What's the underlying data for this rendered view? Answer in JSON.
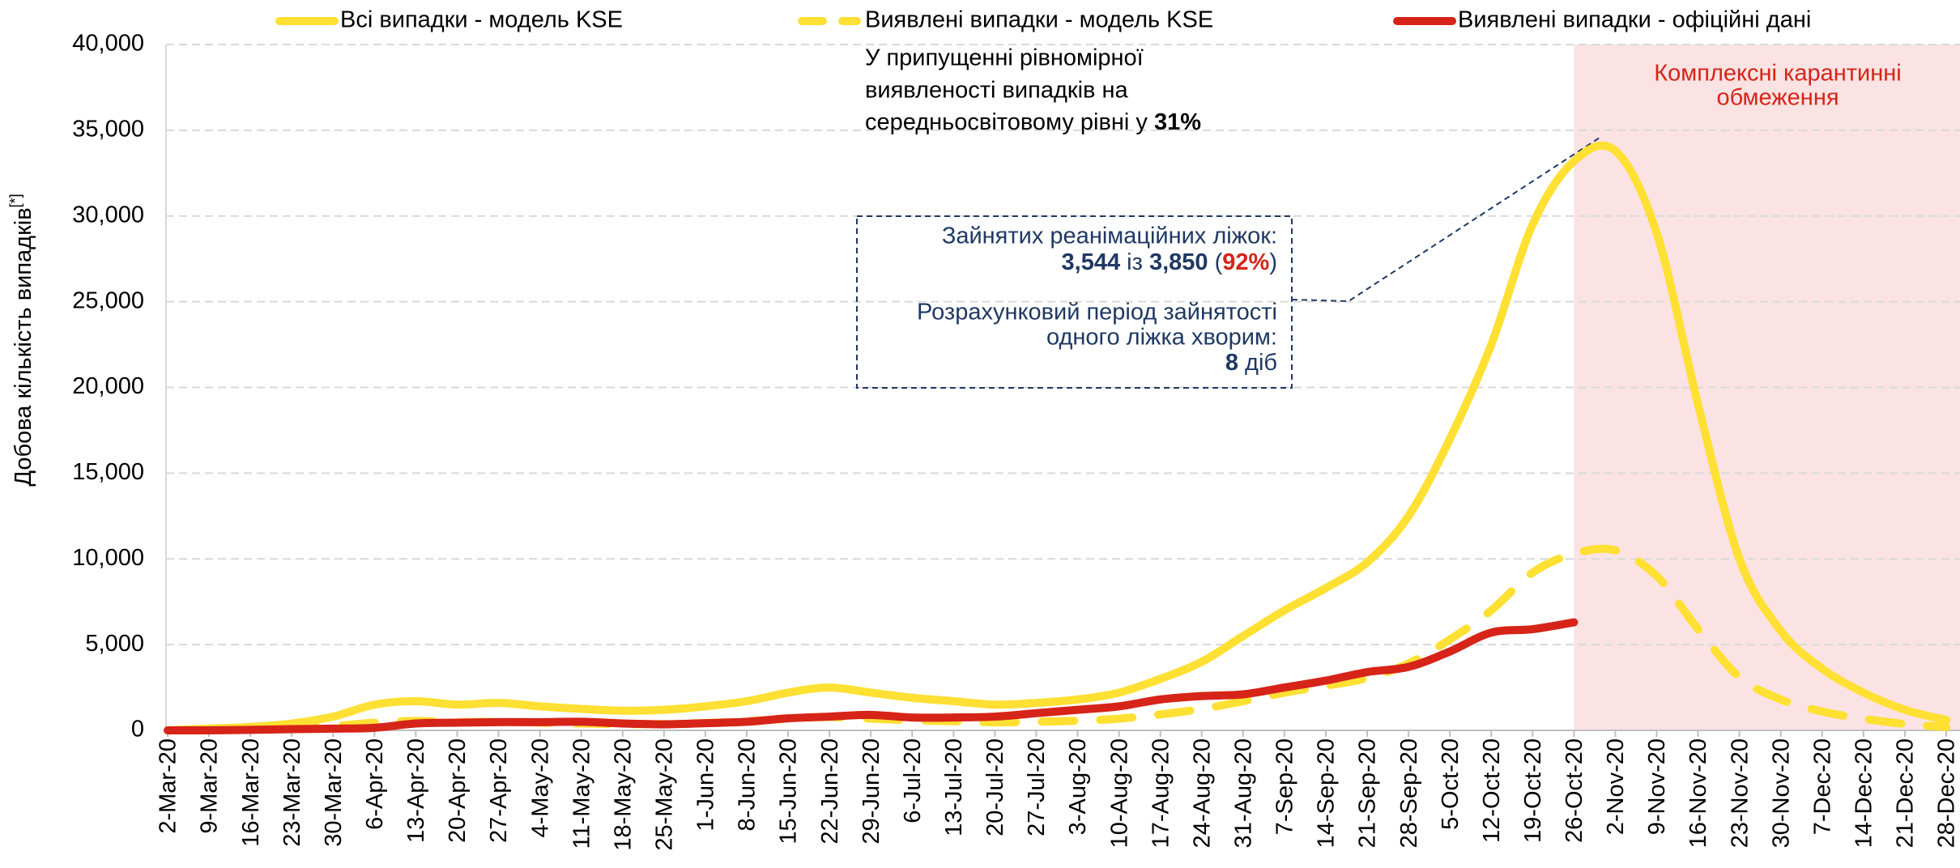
{
  "chart_data": {
    "type": "line",
    "y_label": "Добова кількість випадків",
    "y_label_sup": "[*]",
    "categories": [
      "2-Mar-20",
      "9-Mar-20",
      "16-Mar-20",
      "23-Mar-20",
      "30-Mar-20",
      "6-Apr-20",
      "13-Apr-20",
      "20-Apr-20",
      "27-Apr-20",
      "4-May-20",
      "11-May-20",
      "18-May-20",
      "25-May-20",
      "1-Jun-20",
      "8-Jun-20",
      "15-Jun-20",
      "22-Jun-20",
      "29-Jun-20",
      "6-Jul-20",
      "13-Jul-20",
      "20-Jul-20",
      "27-Jul-20",
      "3-Aug-20",
      "10-Aug-20",
      "17-Aug-20",
      "24-Aug-20",
      "31-Aug-20",
      "7-Sep-20",
      "14-Sep-20",
      "21-Sep-20",
      "28-Sep-20",
      "5-Oct-20",
      "12-Oct-20",
      "19-Oct-20",
      "26-Oct-20",
      "2-Nov-20",
      "9-Nov-20",
      "16-Nov-20",
      "23-Nov-20",
      "30-Nov-20",
      "7-Dec-20",
      "14-Dec-20",
      "21-Dec-20",
      "28-Dec-20"
    ],
    "series": [
      {
        "name": "Всі випадки - модель KSE",
        "color": "#ffe033",
        "style": "solid",
        "values": [
          0,
          100,
          200,
          400,
          800,
          1500,
          1700,
          1500,
          1600,
          1400,
          1250,
          1150,
          1200,
          1400,
          1700,
          2200,
          2500,
          2200,
          1900,
          1700,
          1500,
          1600,
          1800,
          2200,
          3000,
          4000,
          5500,
          7000,
          8300,
          9800,
          12500,
          17000,
          22500,
          29500,
          33200,
          33800,
          29000,
          19000,
          10000,
          5800,
          3600,
          2200,
          1200,
          600
        ]
      },
      {
        "name": "Виявлені випадки - модель KSE",
        "color": "#ffe033",
        "style": "dashed",
        "values": [
          0,
          30,
          60,
          120,
          250,
          450,
          550,
          480,
          500,
          450,
          400,
          360,
          370,
          430,
          530,
          680,
          780,
          680,
          590,
          530,
          470,
          500,
          560,
          680,
          930,
          1250,
          1700,
          2200,
          2600,
          3050,
          3900,
          5300,
          7000,
          9200,
          10300,
          10500,
          9000,
          5900,
          3100,
          1800,
          1100,
          680,
          370,
          190
        ]
      },
      {
        "name": "Виявлені випадки - офіційні дані",
        "color": "#d62418",
        "style": "solid",
        "values": [
          0,
          0,
          30,
          70,
          100,
          150,
          400,
          450,
          480,
          480,
          500,
          400,
          350,
          420,
          500,
          700,
          800,
          900,
          750,
          750,
          800,
          1000,
          1200,
          1400,
          1800,
          2000,
          2100,
          2500,
          2900,
          3400,
          3700,
          4600,
          5700,
          5900,
          6300,
          null,
          null,
          null,
          null,
          null,
          null,
          null,
          null,
          null
        ]
      }
    ],
    "ylim": [
      0,
      40000
    ],
    "yticks": [
      0,
      {
        "value": 5000,
        "label": "5,000"
      },
      {
        "value": 10000,
        "label": "10,000"
      },
      {
        "value": 15000,
        "label": "15,000"
      },
      {
        "value": 20000,
        "label": "20,000"
      },
      {
        "value": 25000,
        "label": "25,000"
      },
      {
        "value": 30000,
        "label": "30,000"
      },
      {
        "value": 35000,
        "label": "35,000"
      },
      {
        "value": 40000,
        "label": "40,000"
      }
    ],
    "grid": true,
    "legend": "top",
    "shade": {
      "from": "26-Oct-20",
      "label": [
        "Комплексні карантинні",
        "обмеження"
      ],
      "color": "#fbe3e3",
      "label_color": "#d62418"
    },
    "note": [
      "У припущенні рівномірної",
      "виявленості випадків на",
      "середньосвітовому рівні у ",
      "31%"
    ],
    "box": {
      "line1": "Зайнятих реанімаційних ліжок:",
      "line2": [
        "3,544",
        " із ",
        "3,850",
        " (",
        "92%",
        ")"
      ],
      "line3": "Розрахунковий період зайнятості",
      "line4": "одного ліжка хворим:",
      "line5": [
        "8",
        " діб"
      ]
    }
  }
}
